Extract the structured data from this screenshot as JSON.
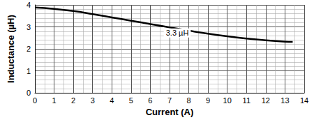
{
  "chart_data": {
    "type": "line",
    "x_label": "Current (A)",
    "y_label": "Inductance (µH)",
    "series": [
      {
        "name": "3.3 µH",
        "color": "#000000",
        "x": [
          0,
          1,
          2,
          3,
          4,
          5,
          6,
          7,
          8,
          9,
          10,
          11,
          12,
          13,
          13.4
        ],
        "values": [
          3.88,
          3.82,
          3.72,
          3.58,
          3.43,
          3.28,
          3.13,
          2.98,
          2.83,
          2.69,
          2.57,
          2.47,
          2.39,
          2.33,
          2.32
        ]
      }
    ],
    "annotations": [
      {
        "text": "3.3 µH",
        "x": 7.4,
        "y": 2.72
      }
    ],
    "xlim": [
      0,
      14
    ],
    "xticks": [
      0,
      1,
      2,
      3,
      4,
      5,
      6,
      7,
      8,
      9,
      10,
      11,
      12,
      13,
      14
    ],
    "ylim": [
      0,
      4
    ],
    "yticks": [
      0,
      1,
      2,
      3,
      4
    ],
    "grid": true
  }
}
